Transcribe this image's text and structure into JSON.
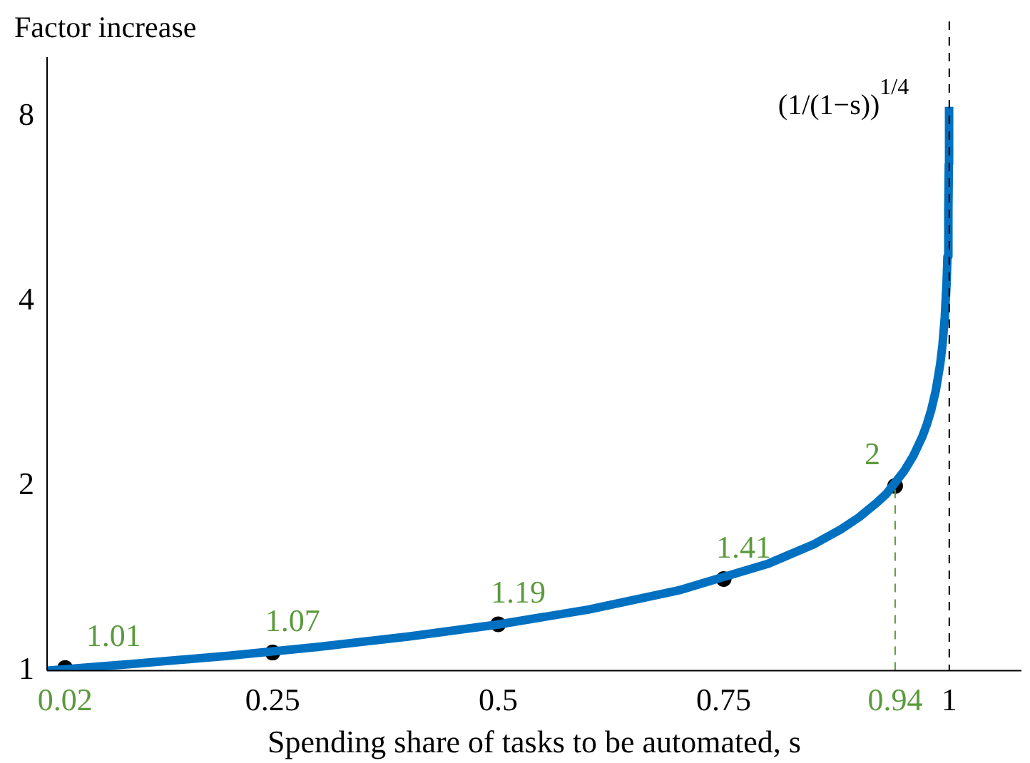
{
  "chart_data": {
    "type": "line",
    "xlabel": "Spending share of tasks to be automated, s",
    "ylabel": "Factor increase",
    "xlim": [
      0,
      1.08
    ],
    "xticks": [
      {
        "value": 0.02,
        "label": "0.02"
      },
      0.25,
      0.5,
      0.75,
      {
        "value": 0.94,
        "label": "0.94"
      },
      1
    ],
    "ylim": [
      1,
      10
    ],
    "yticks": [
      1,
      2,
      4,
      8
    ],
    "log": "y",
    "grid": false,
    "legend": false,
    "annotations": [
      "(1/(1−s))$^{1/4}$"
    ],
    "ref_lines": [
      {
        "axis": "x",
        "value": 1,
        "color": "#000000",
        "line_style": "dashed"
      }
    ],
    "series": [
      {
        "color": "#0070c0",
        "marker": "none",
        "x": [
          0,
          0.1,
          0.2,
          0.3,
          0.4,
          0.5,
          0.6,
          0.7,
          0.8,
          0.85,
          0.88,
          0.9,
          0.92,
          0.93,
          0.95,
          0.96,
          0.97,
          0.975,
          0.98,
          0.985,
          0.99,
          0.9925,
          0.995,
          0.997,
          0.998,
          0.999,
          0.9995,
          0.9998
        ],
        "values": [
          1,
          1.027,
          1.057,
          1.093,
          1.136,
          1.189,
          1.257,
          1.351,
          1.495,
          1.607,
          1.699,
          1.778,
          1.88,
          1.939,
          2.115,
          2.236,
          2.403,
          2.515,
          2.659,
          2.857,
          3.162,
          3.398,
          3.761,
          4.273,
          4.729,
          5.623,
          6.687,
          8.3
        ]
      },
      {
        "type": "line",
        "color": "#5b9a3c",
        "marker": "none",
        "line_style": "dashed",
        "x": [
          0.94,
          0.94
        ],
        "values": [
          1,
          2
        ]
      },
      {
        "type": "scatter",
        "color": "#000000",
        "marker": "circle",
        "x": [
          0.02,
          0.25,
          0.5,
          0.75,
          0.94
        ],
        "values": [
          1.01,
          1.07,
          1.19,
          1.41,
          2
        ],
        "value_labels": [
          "1.01",
          "1.07",
          "1.19",
          "1.41",
          "2"
        ]
      }
    ]
  }
}
